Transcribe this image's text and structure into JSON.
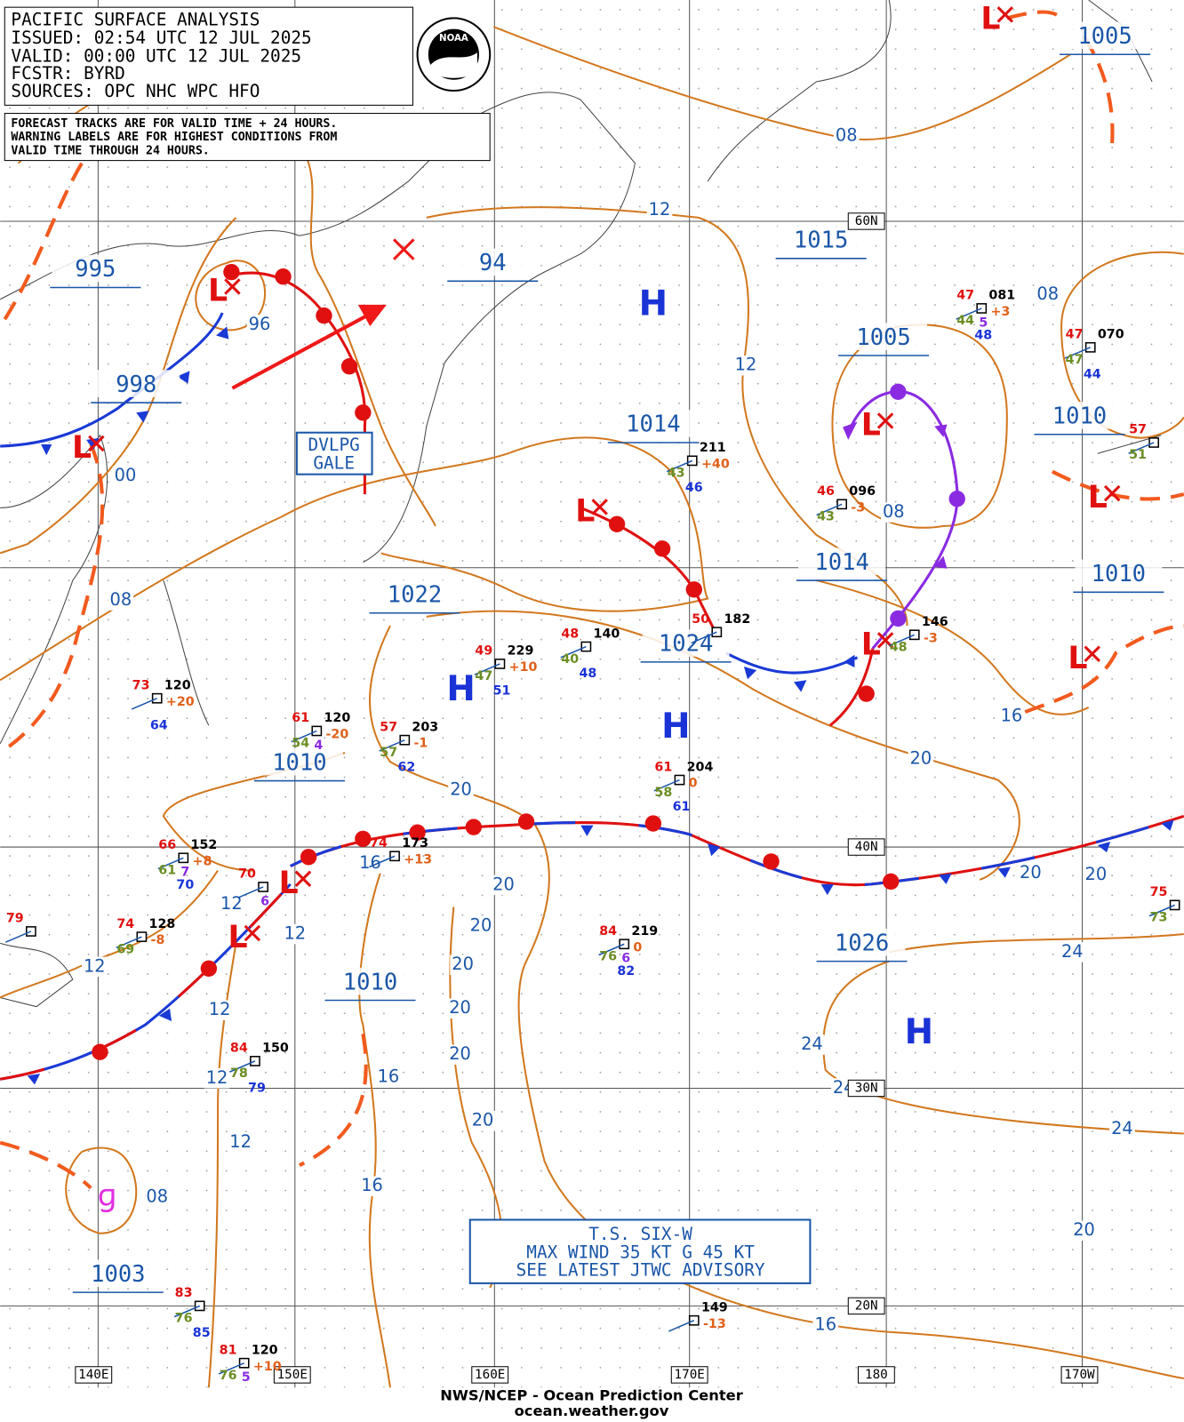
{
  "header": {
    "title": "PACIFIC SURFACE ANALYSIS",
    "issued": "ISSUED: 02:54 UTC 12 JUL 2025",
    "valid": "VALID:  00:00 UTC 12 JUL 2025",
    "forecaster": "FCSTR:  BYRD",
    "sources": "SOURCES: OPC NHC WPC HFO",
    "logo": "NOAA"
  },
  "note": [
    "FORECAST TRACKS ARE FOR VALID TIME + 24 HOURS.",
    "WARNING LABELS ARE FOR HIGHEST CONDITIONS FROM",
    "VALID TIME THROUGH 24 HOURS."
  ],
  "symbols": {
    "high": "H",
    "low": "L"
  },
  "center_pressures": [
    "995",
    "998",
    "94",
    "1015",
    "1005",
    "1005",
    "1014",
    "1010",
    "1014",
    "1010",
    "1022",
    "1024",
    "1010",
    "1026",
    "1010",
    "1003"
  ],
  "isobar_labels": [
    "08",
    "12",
    "96",
    "12",
    "08",
    "00",
    "08",
    "08",
    "16",
    "20",
    "20",
    "16",
    "20",
    "12",
    "12",
    "20",
    "20",
    "20",
    "24",
    "12",
    "20",
    "12",
    "20",
    "24",
    "20",
    "16",
    "12",
    "24",
    "20",
    "24",
    "12",
    "16",
    "08",
    "20",
    "16"
  ],
  "grid_labels": [
    "60N",
    "40N",
    "30N",
    "20N",
    "140E",
    "150E",
    "160E",
    "170E",
    "180",
    "170W"
  ],
  "warning": [
    "DVLPG",
    "GALE"
  ],
  "storm_box": [
    "T.S. SIX-W",
    "MAX WIND 35 KT G 45 KT",
    "SEE LATEST JTWC ADVISORY"
  ],
  "stations": [
    {
      "temp": "47",
      "pres": "081",
      "dew": "44",
      "tend": "+3",
      "vis": "5",
      "wave": "48"
    },
    {
      "temp": "47",
      "pres": "070",
      "dew": "47",
      "wave": "44"
    },
    {
      "temp": "57",
      "dew": "51"
    },
    {
      "pres": "211",
      "dew": "43",
      "tend": "+40",
      "wave": "46"
    },
    {
      "temp": "46",
      "pres": "096",
      "dew": "43",
      "tend": "-3"
    },
    {
      "temp": "50",
      "pres": "182"
    },
    {
      "pres": "146",
      "dew": "48",
      "tend": "-3"
    },
    {
      "temp": "48",
      "pres": "140",
      "dew": "40",
      "wave": "48"
    },
    {
      "temp": "49",
      "pres": "229",
      "dew": "47",
      "tend": "+10",
      "wave": "51"
    },
    {
      "temp": "73",
      "pres": "120",
      "tend": "+20",
      "wave": "64"
    },
    {
      "temp": "61",
      "pres": "120",
      "dew": "54",
      "tend": "-20",
      "vis": "4"
    },
    {
      "temp": "57",
      "pres": "203",
      "dew": "57",
      "tend": "-1",
      "wave": "62"
    },
    {
      "temp": "61",
      "pres": "204",
      "dew": "58",
      "tend": "0",
      "wave": "61"
    },
    {
      "temp": "66",
      "pres": "152",
      "dew": "61",
      "tend": "+8",
      "vis": "7",
      "wave": "70"
    },
    {
      "temp": "74",
      "pres": "173",
      "tend": "+13"
    },
    {
      "temp": "70",
      "vis": "6"
    },
    {
      "temp": "74",
      "pres": "128",
      "dew": "69",
      "tend": "-8"
    },
    {
      "temp": "79"
    },
    {
      "temp": "84",
      "pres": "219",
      "dew": "76",
      "tend": "0",
      "vis": "6",
      "wave": "82"
    },
    {
      "temp": "84",
      "pres": "150",
      "dew": "78",
      "wave": "79"
    },
    {
      "temp": "75",
      "dew": "73"
    },
    {
      "temp": "83",
      "dew": "76",
      "wave": "85"
    },
    {
      "pres": "149",
      "tend": "-13"
    },
    {
      "temp": "81",
      "pres": "120",
      "dew": "76",
      "tend": "+10",
      "vis": "5"
    }
  ],
  "footer": [
    "NWS/NCEP - Ocean Prediction Center",
    "ocean.weather.gov"
  ]
}
